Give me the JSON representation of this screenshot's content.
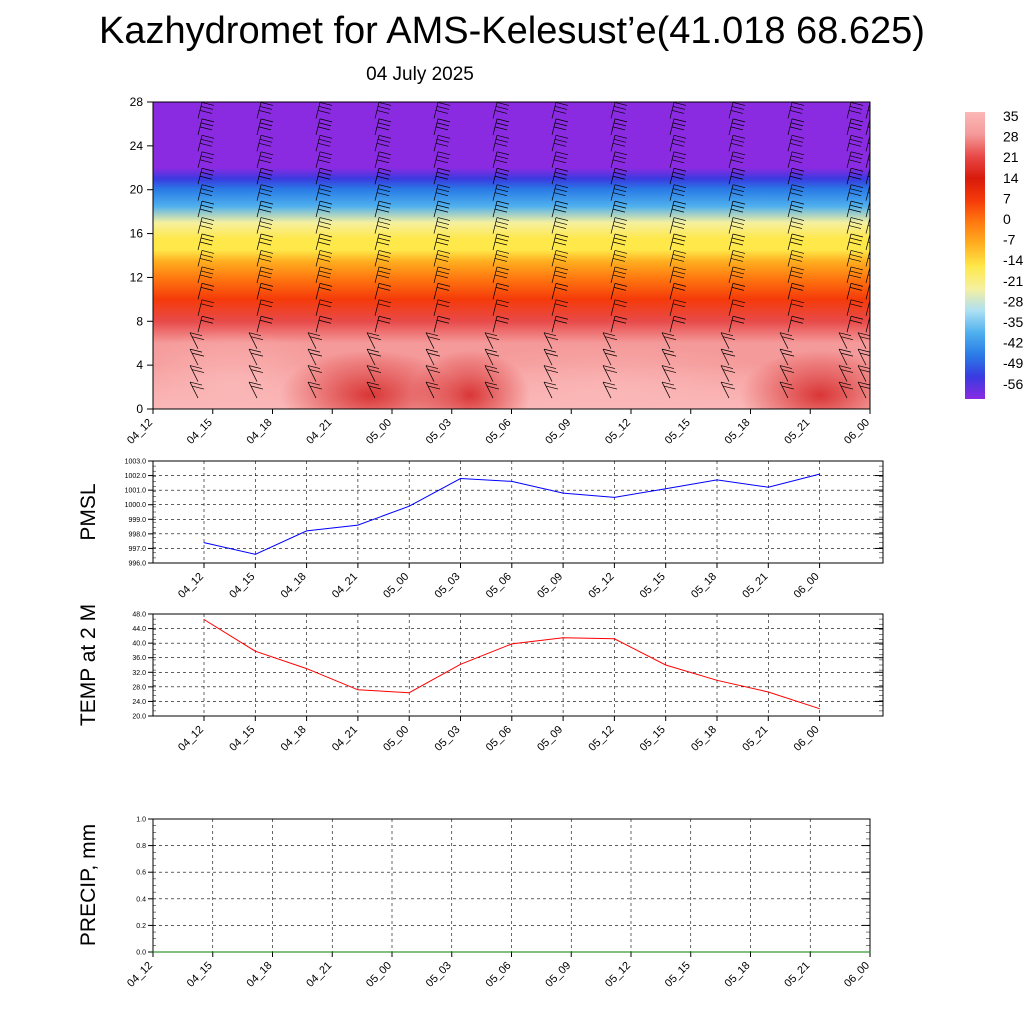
{
  "header": {
    "title": "Kazhydromet for AMS-Kelesust’e(41.018 68.625)",
    "date": "04 July 2025"
  },
  "chart_data": [
    {
      "type": "heatmap",
      "name": "vertical-profile",
      "x_tick_labels": [
        "04_12",
        "04_15",
        "04_18",
        "04_21",
        "05_00",
        "05_03",
        "05_06",
        "05_09",
        "05_12",
        "05_15",
        "05_18",
        "05_21",
        "06_00"
      ],
      "y_tick_labels": [
        "0",
        "4",
        "8",
        "12",
        "16",
        "20",
        "24",
        "28"
      ],
      "ylim": [
        0,
        28
      ],
      "colorbar_labels": [
        "35",
        "28",
        "21",
        "14",
        "7",
        "0",
        "-7",
        "-14",
        "-21",
        "-28",
        "-35",
        "-42",
        "-49",
        "-56"
      ],
      "colorbar_range": [
        -56,
        35
      ],
      "color_scale": [
        "#8a2be2",
        "#3a3ae0",
        "#2a7ce6",
        "#4fb0ee",
        "#aee0f4",
        "#f5f0a0",
        "#ffe84a",
        "#ffb020",
        "#ff7a10",
        "#f53a0a",
        "#d81a0a",
        "#e84a4a",
        "#f59a9a",
        "#fbb8b8"
      ],
      "temperature_profile": [
        {
          "height": 0,
          "value": 33
        },
        {
          "height": 4,
          "value": 30
        },
        {
          "height": 6,
          "value": 26
        },
        {
          "height": 8,
          "value": 20
        },
        {
          "height": 10,
          "value": 10
        },
        {
          "height": 12,
          "value": 2
        },
        {
          "height": 13.5,
          "value": -5
        },
        {
          "height": 14.5,
          "value": -11
        },
        {
          "height": 15.5,
          "value": -16
        },
        {
          "height": 17,
          "value": -24
        },
        {
          "height": 18.5,
          "value": -33
        },
        {
          "height": 20,
          "value": -44
        },
        {
          "height": 21,
          "value": -50
        },
        {
          "height": 22,
          "value": -56
        },
        {
          "height": 28,
          "value": -58
        }
      ],
      "wind_barbs": "present"
    },
    {
      "type": "line",
      "name": "pmsl",
      "ylabel": "PMSL",
      "categories": [
        "04_12",
        "04_15",
        "04_18",
        "04_21",
        "05_00",
        "05_03",
        "05_06",
        "05_09",
        "05_12",
        "05_15",
        "05_18",
        "05_21",
        "06_00"
      ],
      "values": [
        997.4,
        996.6,
        998.2,
        998.6,
        999.9,
        1001.8,
        1001.6,
        1000.8,
        1000.5,
        1001.1,
        1001.7,
        1001.2,
        1002.1
      ],
      "ylim": [
        996.0,
        1003.0
      ],
      "y_tick_labels": [
        "1003.0",
        "1002.0",
        "1001.0",
        "1000.0",
        "999.0",
        "998.0",
        "997.0",
        "996.0"
      ],
      "color": "#0000ff",
      "grid": true
    },
    {
      "type": "line",
      "name": "temp-2m",
      "ylabel": "TEMP at 2 M",
      "categories": [
        "04_12",
        "04_15",
        "04_18",
        "04_21",
        "05_00",
        "05_03",
        "05_06",
        "05_09",
        "05_12",
        "05_15",
        "05_18",
        "05_21",
        "06_00"
      ],
      "values": [
        46.5,
        37.8,
        33.0,
        27.2,
        26.4,
        34.2,
        39.8,
        41.5,
        41.2,
        34.0,
        29.8,
        26.6,
        22.0
      ],
      "ylim": [
        20.0,
        48.0
      ],
      "y_tick_labels": [
        "48.0",
        "44.0",
        "40.0",
        "36.0",
        "32.0",
        "28.0",
        "24.0",
        "20.0"
      ],
      "color": "#ff0000",
      "grid": true
    },
    {
      "type": "line",
      "name": "precip",
      "ylabel": "PRECIP, mm",
      "categories": [
        "04_12",
        "04_15",
        "04_18",
        "04_21",
        "05_00",
        "05_03",
        "05_06",
        "05_09",
        "05_12",
        "05_15",
        "05_18",
        "05_21",
        "06_00"
      ],
      "values": [
        0,
        0,
        0,
        0,
        0,
        0,
        0,
        0,
        0,
        0,
        0,
        0,
        0
      ],
      "ylim": [
        0.0,
        1.0
      ],
      "y_tick_labels": [
        "1.0",
        "0.8",
        "0.6",
        "0.4",
        "0.2",
        "0.0"
      ],
      "color": "#008000",
      "grid": true
    }
  ]
}
